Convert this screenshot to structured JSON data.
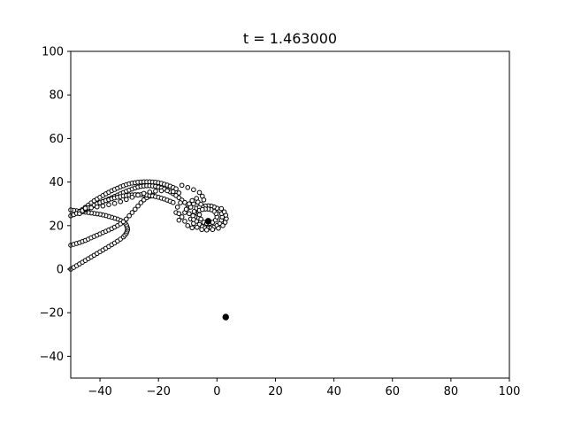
{
  "chart_data": {
    "type": "scatter",
    "title": "t = 1.463000",
    "xlabel": "",
    "ylabel": "",
    "xlim": [
      -50,
      100
    ],
    "ylim": [
      -50,
      100
    ],
    "x_ticks": [
      -40,
      -20,
      0,
      20,
      40,
      60,
      80,
      100
    ],
    "y_ticks": [
      -40,
      -20,
      0,
      20,
      40,
      60,
      80,
      100
    ],
    "grid": false,
    "legend": "none",
    "marker_edge_color": "#000000",
    "marker_face_color": "#ffffff",
    "filled_point": {
      "x": 3,
      "y": -22
    },
    "center_point": {
      "x": -3,
      "y": 22
    },
    "series": [
      {
        "style": "open-circles",
        "points": [
          [
            -50,
            0
          ],
          [
            -49,
            0.8
          ],
          [
            -48,
            1.6
          ],
          [
            -47,
            2.4
          ],
          [
            -46,
            3.2
          ],
          [
            -45,
            4
          ],
          [
            -44,
            4.8
          ],
          [
            -43,
            5.6
          ],
          [
            -42,
            6.4
          ],
          [
            -41,
            7.2
          ],
          [
            -40,
            8
          ],
          [
            -39,
            8.8
          ],
          [
            -38,
            9.6
          ],
          [
            -37,
            10.4
          ],
          [
            -36,
            11.2
          ],
          [
            -35,
            12
          ],
          [
            -34,
            12.9
          ],
          [
            -33,
            13.8
          ],
          [
            -32,
            14.8
          ],
          [
            -31.5,
            15.6
          ],
          [
            -31,
            16.4
          ],
          [
            -30.8,
            17.2
          ],
          [
            -30.6,
            18
          ],
          [
            -30.6,
            18.8
          ],
          [
            -30.8,
            19.6
          ],
          [
            -31,
            20.4
          ],
          [
            -31.5,
            21.2
          ],
          [
            -32,
            21.8
          ],
          [
            -33,
            22.4
          ],
          [
            -34,
            23
          ],
          [
            -35,
            23.4
          ],
          [
            -36,
            23.8
          ],
          [
            -37,
            24.2
          ],
          [
            -38,
            24.6
          ],
          [
            -39,
            24.9
          ],
          [
            -40,
            25.2
          ],
          [
            -41,
            25.4
          ],
          [
            -42,
            25.6
          ],
          [
            -43,
            25.8
          ],
          [
            -44,
            26
          ],
          [
            -45,
            26.2
          ],
          [
            -46,
            26.4
          ],
          [
            -47,
            26.6
          ],
          [
            -48,
            26.8
          ],
          [
            -49,
            27
          ],
          [
            -50,
            27.2
          ],
          [
            -50,
            11
          ],
          [
            -49,
            11.4
          ],
          [
            -48,
            11.8
          ],
          [
            -47,
            12.2
          ],
          [
            -46,
            12.7
          ],
          [
            -45,
            13.2
          ],
          [
            -44,
            13.8
          ],
          [
            -43,
            14.4
          ],
          [
            -42,
            15
          ],
          [
            -41,
            15.6
          ],
          [
            -40,
            16.2
          ],
          [
            -39,
            16.8
          ],
          [
            -38,
            17.4
          ],
          [
            -37,
            18
          ],
          [
            -36,
            18.6
          ],
          [
            -35,
            19.3
          ],
          [
            -34,
            20
          ],
          [
            -33,
            20.8
          ],
          [
            -32,
            21.8
          ],
          [
            -31,
            23
          ],
          [
            -30,
            24.5
          ],
          [
            -29,
            26
          ],
          [
            -28,
            27.5
          ],
          [
            -27,
            29
          ],
          [
            -26,
            30.5
          ],
          [
            -25,
            31.8
          ],
          [
            -24,
            32.8
          ],
          [
            -23,
            33.5
          ],
          [
            -22,
            34
          ],
          [
            -50,
            24.5
          ],
          [
            -49,
            25
          ],
          [
            -48,
            25.6
          ],
          [
            -47,
            26.4
          ],
          [
            -46,
            27.4
          ],
          [
            -45,
            28.4
          ],
          [
            -44,
            29.4
          ],
          [
            -43,
            30.4
          ],
          [
            -42,
            31.4
          ],
          [
            -41,
            32.2
          ],
          [
            -40,
            33
          ],
          [
            -39,
            33.8
          ],
          [
            -38,
            34.6
          ],
          [
            -37,
            35.3
          ],
          [
            -36,
            36
          ],
          [
            -35,
            36.6
          ],
          [
            -34,
            37.2
          ],
          [
            -33,
            37.8
          ],
          [
            -32,
            38.3
          ],
          [
            -31,
            38.8
          ],
          [
            -30,
            39.2
          ],
          [
            -29,
            39.5
          ],
          [
            -28,
            39.7
          ],
          [
            -27,
            39.9
          ],
          [
            -26,
            40
          ],
          [
            -25,
            40.1
          ],
          [
            -24,
            40.1
          ],
          [
            -23,
            40.1
          ],
          [
            -22,
            40
          ],
          [
            -21,
            39.9
          ],
          [
            -20,
            39.7
          ],
          [
            -19,
            39.4
          ],
          [
            -18,
            39
          ],
          [
            -17,
            38.6
          ],
          [
            -16,
            38.1
          ],
          [
            -15,
            37.5
          ],
          [
            -14,
            36.9
          ],
          [
            -47,
            25.5
          ],
          [
            -46,
            26.4
          ],
          [
            -45,
            27.1
          ],
          [
            -44,
            27.8
          ],
          [
            -43,
            28.5
          ],
          [
            -42,
            29.2
          ],
          [
            -41,
            29.8
          ],
          [
            -40,
            30.4
          ],
          [
            -39,
            31
          ],
          [
            -38,
            31.6
          ],
          [
            -37,
            32.2
          ],
          [
            -36,
            32.8
          ],
          [
            -35,
            33.4
          ],
          [
            -34,
            34
          ],
          [
            -33,
            34.6
          ],
          [
            -32,
            35.2
          ],
          [
            -31,
            35.8
          ],
          [
            -30,
            36.3
          ],
          [
            -29,
            36.8
          ],
          [
            -28,
            37.3
          ],
          [
            -27,
            37.7
          ],
          [
            -26,
            38
          ],
          [
            -25,
            38.2
          ],
          [
            -24,
            38.3
          ],
          [
            -23,
            38.3
          ],
          [
            -22,
            38.2
          ],
          [
            -21,
            38
          ],
          [
            -20,
            37.7
          ],
          [
            -19,
            37.3
          ],
          [
            -18,
            36.8
          ],
          [
            -17,
            36.2
          ],
          [
            -16,
            35.5
          ],
          [
            -15,
            34.7
          ],
          [
            -14,
            33.8
          ],
          [
            -13,
            32.8
          ],
          [
            -12,
            31.7
          ],
          [
            -11,
            30.6
          ],
          [
            -10,
            29.5
          ],
          [
            -46,
            26.9
          ],
          [
            -45,
            27.6
          ],
          [
            -44,
            28.2
          ],
          [
            -43,
            28.8
          ],
          [
            -42,
            29.4
          ],
          [
            -41,
            30
          ],
          [
            -40,
            30.5
          ],
          [
            -39,
            31
          ],
          [
            -38,
            31.5
          ],
          [
            -37,
            31.9
          ],
          [
            -36,
            32.3
          ],
          [
            -35,
            32.7
          ],
          [
            -34,
            33
          ],
          [
            -33,
            33.3
          ],
          [
            -32,
            33.6
          ],
          [
            -31,
            33.8
          ],
          [
            -30,
            34
          ],
          [
            -29,
            34.1
          ],
          [
            -28,
            34.2
          ],
          [
            -27,
            34.2
          ],
          [
            -26,
            34.2
          ],
          [
            -25,
            34.1
          ],
          [
            -24,
            34
          ],
          [
            -23,
            33.8
          ],
          [
            -22,
            33.6
          ],
          [
            -21,
            33.3
          ],
          [
            -20,
            33
          ],
          [
            -19,
            32.6
          ],
          [
            -18,
            32.2
          ],
          [
            -17,
            31.7
          ],
          [
            -16,
            31.2
          ],
          [
            -15,
            30.6
          ],
          [
            -45,
            28
          ],
          [
            -43,
            28.2
          ],
          [
            -41,
            28.6
          ],
          [
            -39,
            29
          ],
          [
            -37,
            29.6
          ],
          [
            -35,
            30.2
          ],
          [
            -33,
            31
          ],
          [
            -31,
            32
          ],
          [
            -29,
            33
          ],
          [
            -27,
            34
          ],
          [
            -25,
            34.8
          ],
          [
            -23,
            35.4
          ],
          [
            -21,
            35.8
          ],
          [
            -19,
            36
          ],
          [
            -17,
            36
          ],
          [
            -15,
            35.6
          ],
          [
            -13,
            35
          ],
          [
            -12,
            38.5
          ],
          [
            -10,
            37.5
          ],
          [
            -8,
            36.5
          ],
          [
            -6,
            35.2
          ],
          [
            -5,
            33.5
          ],
          [
            -4.5,
            31.8
          ],
          [
            -8,
            30
          ],
          [
            -10,
            28
          ],
          [
            -11,
            26
          ],
          [
            -12,
            24
          ],
          [
            -13,
            22.5
          ],
          [
            -14,
            26
          ],
          [
            -13.5,
            28.5
          ],
          [
            -12.5,
            30.5
          ],
          [
            -9,
            23
          ],
          [
            -8,
            21
          ],
          [
            -8.5,
            19
          ],
          [
            -10,
            20
          ],
          [
            -11,
            22
          ],
          [
            -9.5,
            25.5
          ],
          [
            -10.5,
            27.5
          ],
          [
            -13,
            25.5
          ],
          [
            -7,
            28
          ],
          [
            -7.5,
            26
          ],
          [
            -7.5,
            24
          ],
          [
            -7,
            22
          ],
          [
            -6,
            20.5
          ],
          [
            -5,
            19.5
          ],
          [
            -4,
            19
          ],
          [
            -3,
            18.8
          ],
          [
            -2,
            19
          ],
          [
            -1,
            19.3
          ],
          [
            0,
            20
          ],
          [
            1,
            21
          ],
          [
            1.5,
            22.5
          ],
          [
            1.8,
            24
          ],
          [
            1.6,
            25.5
          ],
          [
            1,
            27
          ],
          [
            0,
            28
          ],
          [
            -1,
            28.6
          ],
          [
            -2,
            29
          ],
          [
            -3,
            29.1
          ],
          [
            -4,
            29
          ],
          [
            -5,
            28.7
          ],
          [
            -6,
            28.4
          ],
          [
            -6,
            27
          ],
          [
            -6,
            25
          ],
          [
            -5.5,
            23
          ],
          [
            -4.5,
            21.5
          ],
          [
            -3.5,
            21
          ],
          [
            -2.5,
            21
          ],
          [
            -1.5,
            21.5
          ],
          [
            -0.5,
            22.5
          ],
          [
            0,
            24
          ],
          [
            -0.3,
            25.5
          ],
          [
            -1,
            26.6
          ],
          [
            -2,
            27.3
          ],
          [
            -3,
            27.6
          ],
          [
            -4,
            27.6
          ],
          [
            -5,
            27.4
          ],
          [
            -9,
            28.5
          ],
          [
            -9.5,
            30
          ],
          [
            -8.5,
            31.5
          ],
          [
            -7,
            32.5
          ],
          [
            -6.5,
            30.8
          ],
          [
            -5.5,
            29.8
          ],
          [
            -7.8,
            26.5
          ],
          [
            -8.2,
            24.5
          ],
          [
            -8,
            22.8
          ],
          [
            -6.8,
            19.2
          ],
          [
            -5.2,
            18.2
          ],
          [
            -3.5,
            18
          ],
          [
            -1.5,
            18.2
          ],
          [
            0.5,
            18.8
          ],
          [
            2,
            20
          ],
          [
            2.8,
            21.5
          ],
          [
            3.2,
            23.2
          ],
          [
            3,
            24.8
          ],
          [
            2.5,
            26.3
          ],
          [
            1.5,
            27.8
          ]
        ]
      }
    ]
  }
}
